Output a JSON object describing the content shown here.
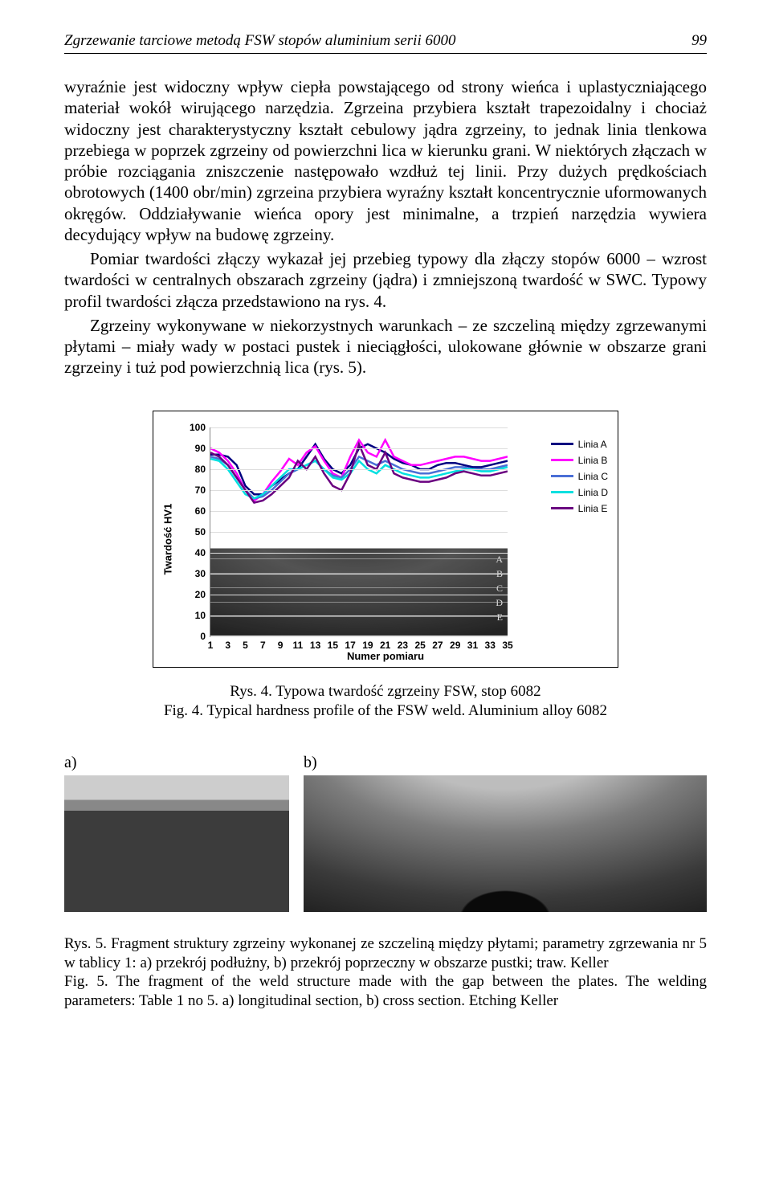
{
  "header": {
    "running_title": "Zgrzewanie tarciowe metodą FSW stopów aluminium serii 6000",
    "page_number": "99"
  },
  "paragraphs": {
    "p1": "wyraźnie jest widoczny wpływ ciepła powstającego od strony wieńca i uplastyczniającego materiał wokół wirującego narzędzia. Zgrzeina przybiera kształt trapezoidalny i chociaż widoczny jest charakterystyczny kształt cebulowy jądra zgrzeiny, to jednak linia tlenkowa przebiega w poprzek zgrzeiny od powierzchni lica w kierunku grani. W niektórych złączach w próbie rozciągania zniszczenie następowało wzdłuż tej linii. Przy dużych prędkościach obrotowych (1400 obr/min) zgrzeina przybiera wyraźny kształt koncentrycznie uformowanych okręgów. Oddziaływanie wieńca opory jest minimalne, a trzpień narzędzia wywiera decydujący wpływ na budowę zgrzeiny.",
    "p2": "Pomiar twardości złączy wykazał jej przebieg typowy dla złączy stopów 6000 – wzrost twardości w centralnych obszarach zgrzeiny (jądra) i zmniejszoną twardość w SWC. Typowy profil twardości złącza przedstawiono na rys. 4.",
    "p3": "Zgrzeiny wykonywane w niekorzystnych warunkach – ze szczeliną między zgrzewanymi płytami – miały wady w postaci pustek i nieciągłości, ulokowane głównie w obszarze grani zgrzeiny i tuż pod powierzchnią lica (rys. 5)."
  },
  "chart": {
    "type": "line",
    "ylabel": "Twardość HV1",
    "xlabel": "Numer pomiaru",
    "ylim": [
      0,
      100
    ],
    "ytick_step": 10,
    "yticks": [
      0,
      10,
      20,
      30,
      40,
      50,
      60,
      70,
      80,
      90,
      100
    ],
    "xticks": [
      1,
      3,
      5,
      7,
      9,
      11,
      13,
      15,
      17,
      19,
      21,
      23,
      25,
      27,
      29,
      31,
      33,
      35
    ],
    "grid_color": "#dddddd",
    "background_color": "#ffffff",
    "axis_color": "#888888",
    "label_fontsize": 13,
    "tick_fontsize": 12,
    "line_width": 2.5,
    "macro_letters": [
      "A",
      "B",
      "C",
      "D",
      "E"
    ],
    "series": [
      {
        "name": "Linia A",
        "color": "#000080",
        "y": [
          87,
          87,
          86,
          82,
          72,
          68,
          68,
          72,
          75,
          78,
          80,
          86,
          92,
          85,
          80,
          78,
          82,
          90,
          92,
          90,
          88,
          85,
          83,
          82,
          80,
          80,
          82,
          83,
          83,
          82,
          81,
          81,
          82,
          83,
          84
        ]
      },
      {
        "name": "Linia B",
        "color": "#ff00ff",
        "y": [
          90,
          88,
          84,
          78,
          70,
          65,
          68,
          74,
          79,
          85,
          82,
          88,
          91,
          84,
          78,
          76,
          86,
          94,
          88,
          86,
          94,
          86,
          84,
          82,
          82,
          83,
          84,
          85,
          86,
          86,
          85,
          84,
          84,
          85,
          86
        ]
      },
      {
        "name": "Linia C",
        "color": "#4a6fd6",
        "y": [
          86,
          85,
          82,
          76,
          70,
          66,
          67,
          70,
          74,
          78,
          80,
          82,
          84,
          80,
          77,
          76,
          80,
          86,
          84,
          82,
          84,
          82,
          80,
          79,
          78,
          78,
          79,
          80,
          81,
          81,
          80,
          80,
          80,
          81,
          82
        ]
      },
      {
        "name": "Linia D",
        "color": "#00e0e0",
        "y": [
          85,
          84,
          80,
          74,
          68,
          66,
          68,
          72,
          76,
          80,
          80,
          82,
          84,
          80,
          76,
          75,
          78,
          84,
          80,
          78,
          82,
          80,
          78,
          77,
          76,
          76,
          77,
          78,
          79,
          80,
          80,
          79,
          79,
          80,
          81
        ]
      },
      {
        "name": "Linia E",
        "color": "#6a0080",
        "y": [
          88,
          86,
          82,
          76,
          70,
          64,
          65,
          68,
          72,
          76,
          84,
          80,
          86,
          78,
          72,
          70,
          78,
          92,
          82,
          80,
          88,
          78,
          76,
          75,
          74,
          74,
          75,
          76,
          78,
          79,
          78,
          77,
          77,
          78,
          79
        ]
      }
    ]
  },
  "caption4": {
    "pl": "Rys. 4. Typowa twardość zgrzeiny FSW, stop 6082",
    "en": "Fig. 4. Typical hardness profile of the FSW weld. Aluminium alloy 6082"
  },
  "fig5": {
    "label_a": "a)",
    "label_b": "b)"
  },
  "caption5": {
    "pl": "Rys. 5. Fragment struktury zgrzeiny wykonanej ze szczeliną między płytami; parametry zgrzewania nr 5 w tablicy 1: a) przekrój podłużny, b) przekrój poprzeczny w obszarze pustki; traw. Keller",
    "en": "Fig. 5. The fragment of the weld structure made with the gap between the plates. The welding parameters: Table 1 no 5. a) longitudinal section, b) cross section. Etching Keller"
  }
}
